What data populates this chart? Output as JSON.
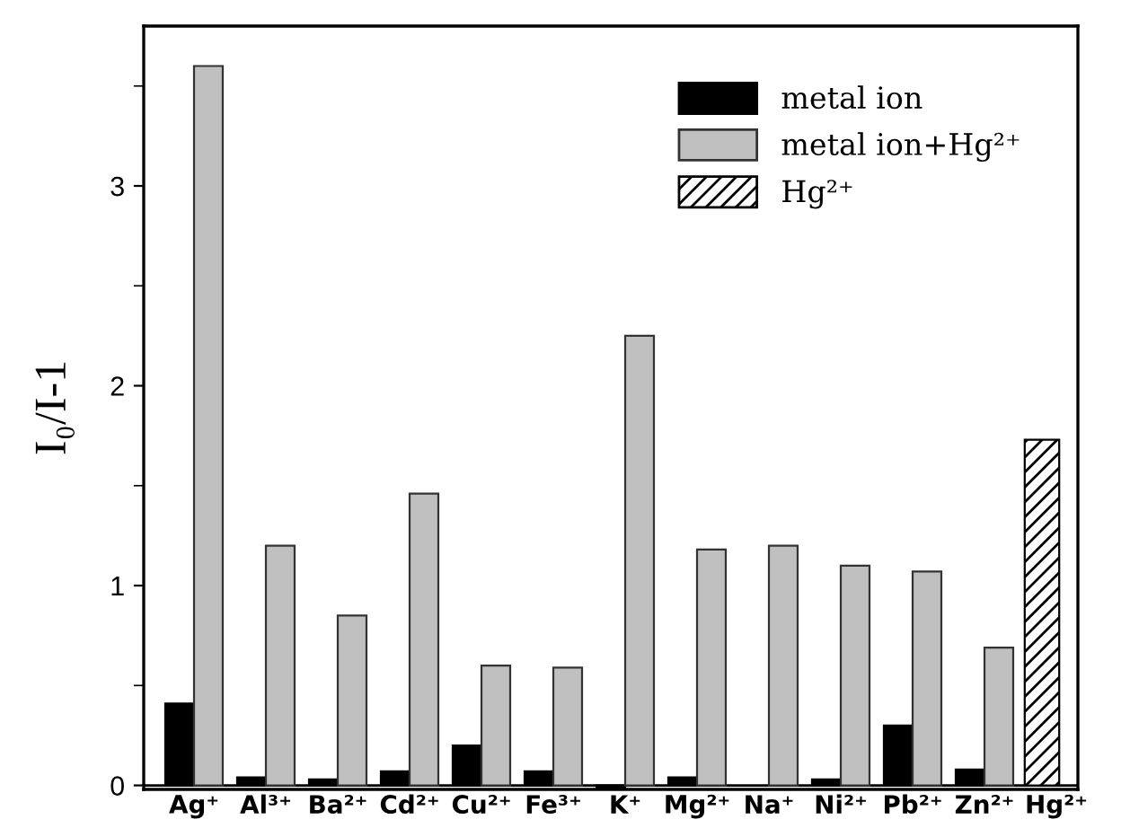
{
  "chart_data": {
    "type": "bar",
    "ylabel": "I₀/I-1",
    "categories": [
      "Ag⁺",
      "Al³⁺",
      "Ba²⁺",
      "Cd²⁺",
      "Cu²⁺",
      "Fe³⁺",
      "K⁺",
      "Mg²⁺",
      "Na⁺",
      "Ni²⁺",
      "Pb²⁺",
      "Zn²⁺",
      "Hg²⁺"
    ],
    "series": [
      {
        "name": "metal ion",
        "color": "#000000",
        "values": [
          0.41,
          0.04,
          0.03,
          0.07,
          0.2,
          0.07,
          -0.01,
          0.04,
          null,
          0.03,
          0.3,
          0.08,
          null
        ]
      },
      {
        "name": "metal ion+Hg²⁺",
        "color": "#c0c0c0",
        "values": [
          3.6,
          1.2,
          0.85,
          1.46,
          0.6,
          0.59,
          2.25,
          1.18,
          1.2,
          1.1,
          1.07,
          0.69,
          null
        ]
      },
      {
        "name": "Hg²⁺",
        "color": "#000000",
        "values": [
          null,
          null,
          null,
          null,
          null,
          null,
          null,
          null,
          null,
          null,
          null,
          null,
          1.73
        ]
      }
    ],
    "ylim": [
      -0.02,
      3.8
    ],
    "yticks": [
      0,
      1,
      2,
      3
    ],
    "legend": "top right",
    "grid": false
  }
}
